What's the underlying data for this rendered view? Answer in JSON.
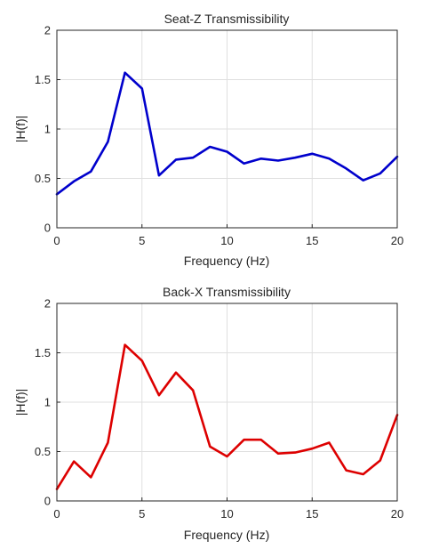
{
  "chart_data": [
    {
      "type": "line",
      "title": "Seat-Z Transmissibility",
      "xlabel": "Frequency (Hz)",
      "ylabel": "|H(f)|",
      "xlim": [
        0,
        20
      ],
      "ylim": [
        0,
        2
      ],
      "xticks": [
        "0",
        "5",
        "10",
        "15",
        "20"
      ],
      "yticks": [
        "0",
        "0.5",
        "1",
        "1.5",
        "2"
      ],
      "grid": true,
      "color": "#0000cc",
      "series": [
        {
          "x": [
            0,
            1,
            2,
            3,
            4,
            5,
            6,
            7,
            8,
            9,
            10,
            11,
            12,
            13,
            14,
            15,
            16,
            17,
            18,
            19,
            20
          ],
          "values": [
            0.34,
            0.47,
            0.57,
            0.87,
            1.57,
            1.41,
            0.53,
            0.69,
            0.71,
            0.82,
            0.77,
            0.65,
            0.7,
            0.68,
            0.71,
            0.75,
            0.7,
            0.6,
            0.48,
            0.55,
            0.72
          ]
        }
      ]
    },
    {
      "type": "line",
      "title": "Back-X Transmissibility",
      "xlabel": "Frequency (Hz)",
      "ylabel": "|H(f)|",
      "xlim": [
        0,
        20
      ],
      "ylim": [
        0,
        2
      ],
      "xticks": [
        "0",
        "5",
        "10",
        "15",
        "20"
      ],
      "yticks": [
        "0",
        "0.5",
        "1",
        "1.5",
        "2"
      ],
      "grid": true,
      "color": "#dd0000",
      "series": [
        {
          "x": [
            0,
            1,
            2,
            3,
            4,
            5,
            6,
            7,
            8,
            9,
            10,
            11,
            12,
            13,
            14,
            15,
            16,
            17,
            18,
            19,
            20
          ],
          "values": [
            0.12,
            0.4,
            0.24,
            0.59,
            1.58,
            1.42,
            1.07,
            1.3,
            1.12,
            0.55,
            0.45,
            0.62,
            0.62,
            0.48,
            0.49,
            0.53,
            0.59,
            0.31,
            0.27,
            0.41,
            0.87
          ]
        }
      ]
    }
  ]
}
